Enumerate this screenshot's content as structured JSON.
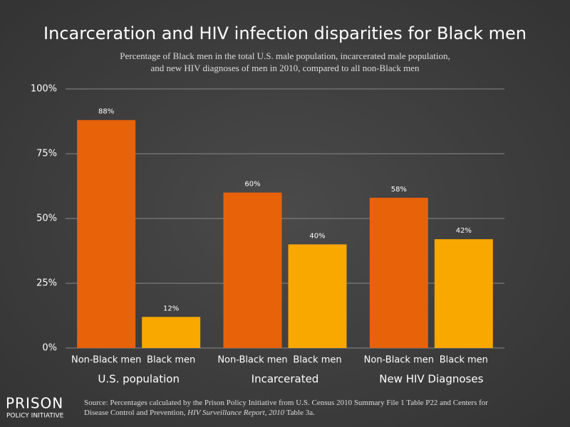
{
  "chart_data": {
    "type": "bar",
    "title": "Incarceration and HIV infection disparities for Black men",
    "subtitle": [
      "Percentage of Black men in the total U.S. male population, incarcerated male population,",
      "and new HIV diagnoses of men in 2010, compared to all non-Black men"
    ],
    "categories": [
      "U.S. population",
      "Incarcerated",
      "New HIV Diagnoses"
    ],
    "series": [
      {
        "name": "Non-Black men",
        "color": "#e8620a",
        "values": [
          88,
          60,
          58
        ],
        "value_labels": [
          "88%",
          "60%",
          "58%"
        ]
      },
      {
        "name": "Black men",
        "color": "#f9a800",
        "values": [
          12,
          40,
          42
        ],
        "value_labels": [
          "12%",
          "40%",
          "42%"
        ]
      }
    ],
    "ylim": [
      0,
      100
    ],
    "yticks": [
      {
        "value": 0,
        "label": "0%"
      },
      {
        "value": 25,
        "label": "25%"
      },
      {
        "value": 50,
        "label": "50%"
      },
      {
        "value": 75,
        "label": "75%"
      },
      {
        "value": 100,
        "label": "100%"
      }
    ],
    "grid": true,
    "source": [
      "Source: Percentages calculated by the Prison Policy Initiative from U.S. Census 2010 Summary File 1 Table P22 and Centers for Disease Control and Prevention, ",
      "HIV Surveillance Report, 2010",
      " Table 3a."
    ],
    "logo": [
      "PRISON",
      "POLICY INITIATIVE"
    ]
  }
}
